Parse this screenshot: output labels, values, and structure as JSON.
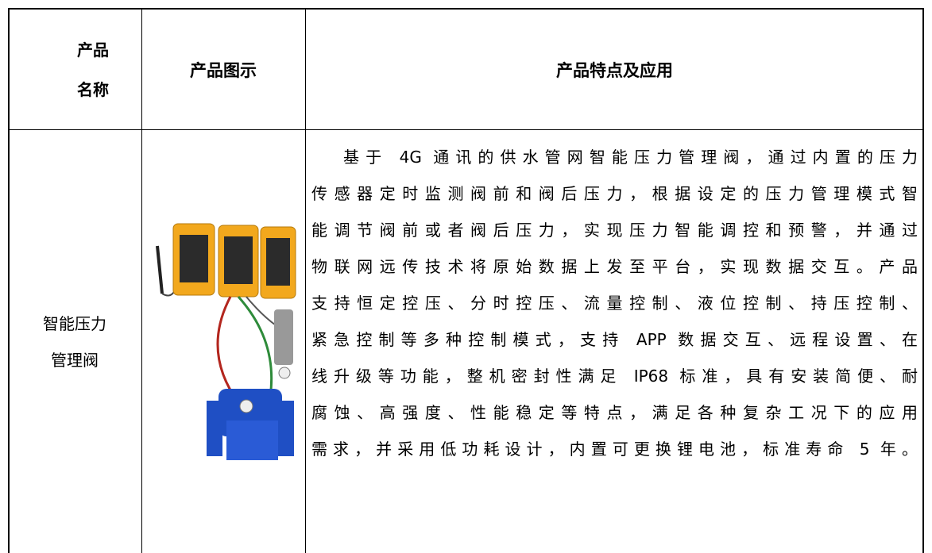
{
  "table": {
    "header": [
      [
        "产品",
        "名称"
      ],
      "产品图示",
      "产品特点及应用"
    ],
    "rows": [
      [
        [
          "智能压力",
          "管理阀"
        ],
        [
          "基于 4G 通讯的供水管网智能压力管理阀，通过内置的压力",
          "传感器定时监测阀前和阀后压力，根据设定的压力管理模式智",
          "能调节阀前或者阀后压力，实现压力智能调控和预警，并通过",
          "物联网远传技术将原始数据上发至平台，实现数据交互。产品",
          "支持恒定控压、分时控压、流量控制、液位控制、持压控制、",
          "紧急控制等多种控制模式，支持 APP 数据交互、远程设置、在",
          "线升级等功能，整机密封性满足 IP68 标准，具有安装简便、耐",
          "腐蚀、高强度、性能稳定等特点，满足各种复杂工况下的应用",
          "需求，并采用低功耗设计，内置可更换锂电池，标准寿命 5 年。"
        ]
      ]
    ]
  }
}
